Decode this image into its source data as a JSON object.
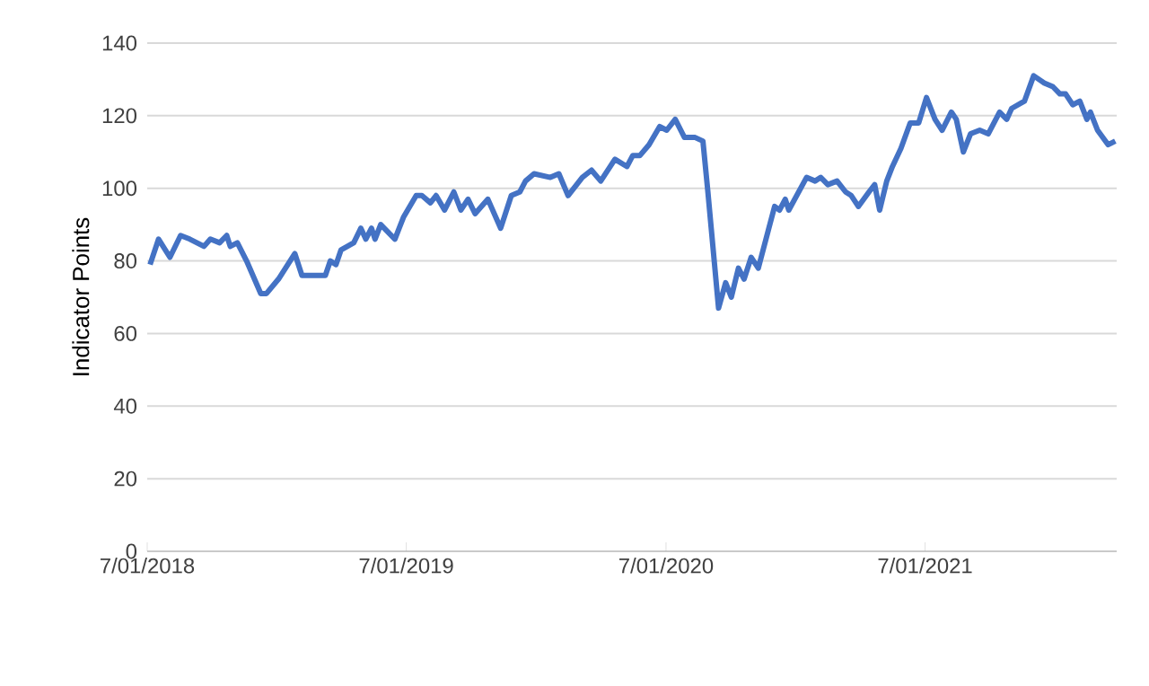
{
  "chart_data": {
    "type": "line",
    "ylabel": "Indicator Points",
    "color": "#4472c4",
    "grid": "y",
    "xlim": [
      "2018-07-01",
      "2022-03-28"
    ],
    "ylim": [
      0,
      140
    ],
    "xticks": [
      {
        "value": "2018-07-01",
        "label": "7/01/2018"
      },
      {
        "value": "2019-07-01",
        "label": "7/01/2019"
      },
      {
        "value": "2020-07-01",
        "label": "7/01/2020"
      },
      {
        "value": "2021-07-01",
        "label": "7/01/2021"
      }
    ],
    "yticks": [
      0,
      20,
      40,
      60,
      80,
      100,
      120,
      140
    ],
    "x": [
      "2018-07-05",
      "2018-07-17",
      "2018-08-02",
      "2018-08-17",
      "2018-08-30",
      "2018-09-19",
      "2018-09-28",
      "2018-10-11",
      "2018-10-21",
      "2018-10-26",
      "2018-11-05",
      "2018-11-18",
      "2018-12-08",
      "2018-12-16",
      "2019-01-02",
      "2019-01-25",
      "2019-02-04",
      "2019-02-14",
      "2019-03-09",
      "2019-03-16",
      "2019-03-24",
      "2019-03-31",
      "2019-04-18",
      "2019-04-28",
      "2019-05-05",
      "2019-05-13",
      "2019-05-18",
      "2019-05-26",
      "2019-06-15",
      "2019-06-27",
      "2019-07-15",
      "2019-07-23",
      "2019-08-04",
      "2019-08-12",
      "2019-08-24",
      "2019-09-06",
      "2019-09-16",
      "2019-09-26",
      "2019-10-06",
      "2019-10-24",
      "2019-11-11",
      "2019-11-26",
      "2019-12-08",
      "2019-12-16",
      "2019-12-28",
      "2020-01-20",
      "2020-02-01",
      "2020-02-14",
      "2020-03-05",
      "2020-03-18",
      "2020-03-31",
      "2020-04-20",
      "2020-05-07",
      "2020-05-15",
      "2020-05-25",
      "2020-06-07",
      "2020-06-22",
      "2020-07-02",
      "2020-07-14",
      "2020-07-27",
      "2020-08-11",
      "2020-08-22",
      "2020-08-29",
      "2020-09-13",
      "2020-09-23",
      "2020-10-01",
      "2020-10-11",
      "2020-10-19",
      "2020-10-29",
      "2020-11-08",
      "2020-12-01",
      "2020-12-08",
      "2020-12-16",
      "2020-12-21",
      "2021-01-15",
      "2021-01-27",
      "2021-02-04",
      "2021-02-14",
      "2021-02-27",
      "2021-03-11",
      "2021-03-19",
      "2021-03-29",
      "2021-04-13",
      "2021-04-21",
      "2021-04-28",
      "2021-05-08",
      "2021-05-16",
      "2021-05-28",
      "2021-06-10",
      "2021-06-22",
      "2021-07-03",
      "2021-07-15",
      "2021-07-25",
      "2021-08-07",
      "2021-08-14",
      "2021-08-24",
      "2021-09-03",
      "2021-09-16",
      "2021-09-28",
      "2021-10-14",
      "2021-10-24",
      "2021-10-31",
      "2021-11-18",
      "2021-12-01",
      "2021-12-16",
      "2021-12-28",
      "2022-01-07",
      "2022-01-15",
      "2022-01-25",
      "2022-02-04",
      "2022-02-14",
      "2022-02-19",
      "2022-03-01",
      "2022-03-16",
      "2022-03-26"
    ],
    "values": [
      79,
      86,
      81,
      87,
      86,
      84,
      86,
      85,
      87,
      84,
      85,
      80,
      71,
      71,
      75,
      82,
      76,
      76,
      76,
      80,
      79,
      83,
      85,
      89,
      86,
      89,
      86,
      90,
      86,
      92,
      98,
      98,
      96,
      98,
      94,
      99,
      94,
      97,
      93,
      97,
      89,
      98,
      99,
      102,
      104,
      103,
      104,
      98,
      103,
      105,
      102,
      108,
      106,
      109,
      109,
      112,
      117,
      116,
      119,
      114,
      114,
      113,
      99,
      67,
      74,
      70,
      78,
      75,
      81,
      78,
      95,
      94,
      97,
      94,
      103,
      102,
      103,
      101,
      102,
      99,
      98,
      95,
      99,
      101,
      94,
      102,
      106,
      111,
      118,
      118,
      125,
      119,
      116,
      121,
      119,
      110,
      115,
      116,
      115,
      121,
      119,
      122,
      124,
      131,
      129,
      128,
      126,
      126,
      123,
      124,
      119,
      121,
      116,
      112,
      113
    ]
  }
}
